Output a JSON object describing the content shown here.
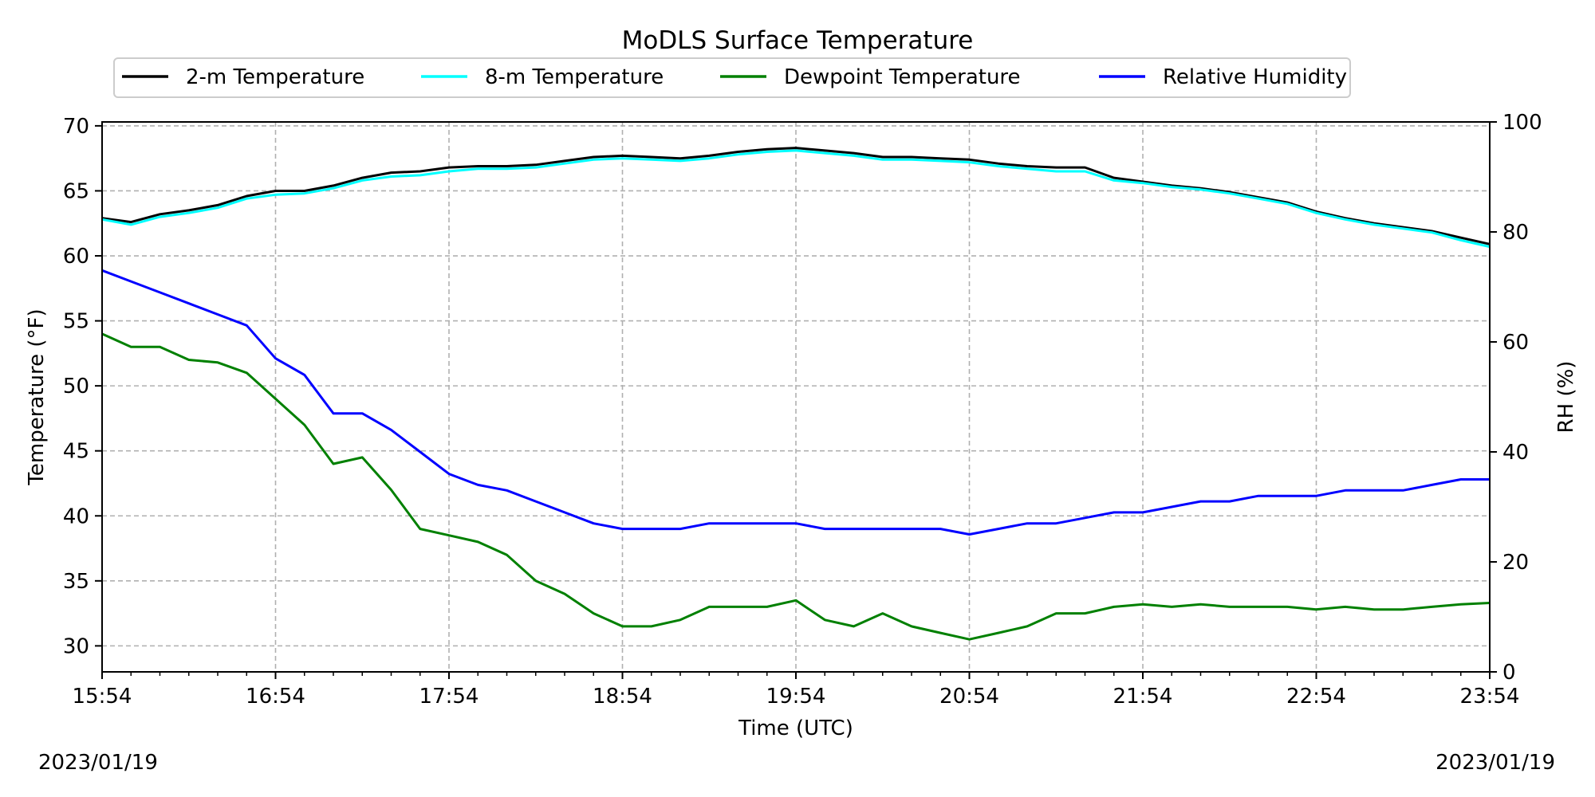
{
  "chart_data": {
    "type": "line",
    "title": "MoDLS Surface Temperature",
    "xlabel": "Time (UTC)",
    "ylabel": "Temperature ($^\\circ$F)",
    "ylabel_display": "Temperature (°F)",
    "y2label": "RH (%)",
    "ylim": [
      28,
      70.3
    ],
    "y2lim": [
      0,
      100
    ],
    "xlim": [
      "15:54",
      "23:54"
    ],
    "x_ticks": [
      "15:54",
      "16:54",
      "17:54",
      "18:54",
      "19:54",
      "20:54",
      "21:54",
      "22:54",
      "23:54"
    ],
    "y_ticks": [
      30,
      35,
      40,
      45,
      50,
      55,
      60,
      65,
      70
    ],
    "y2_ticks": [
      0,
      20,
      40,
      60,
      80,
      100
    ],
    "grid": true,
    "legend_position": "top",
    "date_left": "2023/01/19",
    "date_right": "2023/01/19",
    "x": [
      "15:54",
      "16:04",
      "16:14",
      "16:24",
      "16:34",
      "16:44",
      "16:54",
      "17:04",
      "17:14",
      "17:24",
      "17:34",
      "17:44",
      "17:54",
      "18:04",
      "18:14",
      "18:24",
      "18:34",
      "18:44",
      "18:54",
      "19:04",
      "19:14",
      "19:24",
      "19:34",
      "19:44",
      "19:54",
      "20:04",
      "20:14",
      "20:24",
      "20:34",
      "20:44",
      "20:54",
      "21:04",
      "21:14",
      "21:24",
      "21:34",
      "21:44",
      "21:54",
      "22:04",
      "22:14",
      "22:24",
      "22:34",
      "22:44",
      "22:54",
      "23:04",
      "23:14",
      "23:24",
      "23:34",
      "23:44",
      "23:54"
    ],
    "series": [
      {
        "name": "2-m Temperature",
        "color": "#000000",
        "axis": "left",
        "values": [
          62.9,
          62.6,
          63.2,
          63.5,
          63.9,
          64.6,
          65.0,
          65.0,
          65.4,
          66.0,
          66.4,
          66.5,
          66.8,
          66.9,
          66.9,
          67.0,
          67.3,
          67.6,
          67.7,
          67.6,
          67.5,
          67.7,
          68.0,
          68.2,
          68.3,
          68.1,
          67.9,
          67.6,
          67.6,
          67.5,
          67.4,
          67.1,
          66.9,
          66.8,
          66.8,
          66.0,
          65.7,
          65.4,
          65.2,
          64.9,
          64.5,
          64.1,
          63.4,
          62.9,
          62.5,
          62.2,
          61.9,
          61.4,
          60.9
        ]
      },
      {
        "name": "8-m Temperature",
        "color": "#00ffff",
        "axis": "left",
        "values": [
          62.8,
          62.4,
          63.0,
          63.3,
          63.7,
          64.4,
          64.7,
          64.8,
          65.2,
          65.8,
          66.1,
          66.2,
          66.5,
          66.7,
          66.7,
          66.8,
          67.1,
          67.4,
          67.5,
          67.4,
          67.3,
          67.5,
          67.8,
          68.0,
          68.1,
          67.9,
          67.7,
          67.4,
          67.4,
          67.3,
          67.2,
          66.9,
          66.7,
          66.5,
          66.5,
          65.8,
          65.6,
          65.3,
          65.1,
          64.8,
          64.4,
          64.0,
          63.3,
          62.8,
          62.4,
          62.1,
          61.8,
          61.2,
          60.7
        ]
      },
      {
        "name": "Dewpoint Temperature",
        "color": "#008000",
        "axis": "left",
        "values": [
          54.0,
          53.0,
          53.0,
          52.0,
          51.8,
          51.0,
          49.0,
          47.0,
          44.0,
          44.5,
          42.0,
          39.0,
          38.5,
          38.0,
          37.0,
          35.0,
          34.0,
          32.5,
          31.5,
          31.5,
          32.0,
          33.0,
          33.0,
          33.0,
          33.5,
          32.0,
          31.5,
          32.5,
          31.5,
          31.0,
          30.5,
          31.0,
          31.5,
          32.5,
          32.5,
          33.0,
          33.2,
          33.0,
          33.2,
          33.0,
          33.0,
          33.0,
          32.8,
          33.0,
          32.8,
          32.8,
          33.0,
          33.2,
          33.3
        ]
      },
      {
        "name": "Relative Humidity",
        "color": "#0000ff",
        "axis": "right",
        "values": [
          73,
          71,
          69,
          67,
          65,
          63,
          57,
          54,
          47,
          47,
          44,
          40,
          36,
          34,
          33,
          31,
          29,
          27,
          26,
          26,
          26,
          27,
          27,
          27,
          27,
          26,
          26,
          26,
          26,
          26,
          25,
          26,
          27,
          27,
          28,
          29,
          29,
          30,
          31,
          31,
          32,
          32,
          32,
          33,
          33,
          33,
          34,
          35,
          35
        ]
      }
    ]
  }
}
